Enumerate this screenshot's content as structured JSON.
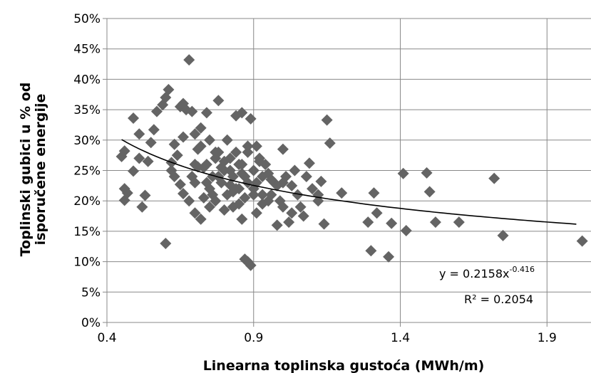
{
  "chart_data": {
    "type": "scatter",
    "xlabel": "Linearna toplinska gustoća (MWh/m)",
    "ylabel_lines": [
      "Toplinski gubici u % od",
      "isporučene energije"
    ],
    "xlim": [
      0.4,
      2.05
    ],
    "ylim": [
      0,
      0.5
    ],
    "x_ticks": [
      0.4,
      0.9,
      1.4,
      1.9
    ],
    "x_tick_labels": [
      "0.4",
      "0.9",
      "1.4",
      "1.9"
    ],
    "y_ticks": [
      0,
      0.05,
      0.1,
      0.15,
      0.2,
      0.25,
      0.3,
      0.35,
      0.4,
      0.45,
      0.5
    ],
    "y_tick_labels": [
      "0%",
      "5%",
      "10%",
      "15%",
      "20%",
      "25%",
      "30%",
      "35%",
      "40%",
      "45%",
      "50%"
    ],
    "grid": {
      "horizontal": true,
      "vertical": true
    },
    "marker_color": "#646464",
    "trendline": {
      "type": "power",
      "a": 0.2158,
      "b": -0.416,
      "x_range": [
        0.45,
        2.0
      ],
      "color": "#000000"
    },
    "equation": {
      "base": "y = 0.2158x",
      "exponent": "-0.416",
      "r2": "R² = 0.2054"
    },
    "points": [
      [
        0.45,
        0.273
      ],
      [
        0.46,
        0.282
      ],
      [
        0.46,
        0.22
      ],
      [
        0.47,
        0.213
      ],
      [
        0.46,
        0.201
      ],
      [
        0.49,
        0.336
      ],
      [
        0.49,
        0.249
      ],
      [
        0.51,
        0.27
      ],
      [
        0.51,
        0.31
      ],
      [
        0.52,
        0.19
      ],
      [
        0.53,
        0.209
      ],
      [
        0.54,
        0.265
      ],
      [
        0.55,
        0.296
      ],
      [
        0.56,
        0.317
      ],
      [
        0.57,
        0.347
      ],
      [
        0.59,
        0.358
      ],
      [
        0.6,
        0.37
      ],
      [
        0.61,
        0.383
      ],
      [
        0.62,
        0.263
      ],
      [
        0.63,
        0.293
      ],
      [
        0.64,
        0.275
      ],
      [
        0.65,
        0.355
      ],
      [
        0.65,
        0.227
      ],
      [
        0.66,
        0.212
      ],
      [
        0.67,
        0.35
      ],
      [
        0.68,
        0.432
      ],
      [
        0.6,
        0.13
      ],
      [
        0.62,
        0.25
      ],
      [
        0.63,
        0.24
      ],
      [
        0.69,
        0.347
      ],
      [
        0.7,
        0.31
      ],
      [
        0.7,
        0.23
      ],
      [
        0.71,
        0.256
      ],
      [
        0.72,
        0.32
      ],
      [
        0.72,
        0.29
      ],
      [
        0.72,
        0.17
      ],
      [
        0.73,
        0.205
      ],
      [
        0.74,
        0.345
      ],
      [
        0.74,
        0.26
      ],
      [
        0.75,
        0.3
      ],
      [
        0.75,
        0.22
      ],
      [
        0.75,
        0.19
      ],
      [
        0.76,
        0.24
      ],
      [
        0.77,
        0.27
      ],
      [
        0.77,
        0.2
      ],
      [
        0.78,
        0.365
      ],
      [
        0.78,
        0.28
      ],
      [
        0.79,
        0.23
      ],
      [
        0.8,
        0.25
      ],
      [
        0.8,
        0.185
      ],
      [
        0.81,
        0.3
      ],
      [
        0.81,
        0.21
      ],
      [
        0.82,
        0.27
      ],
      [
        0.82,
        0.226
      ],
      [
        0.83,
        0.24
      ],
      [
        0.83,
        0.19
      ],
      [
        0.84,
        0.34
      ],
      [
        0.84,
        0.28
      ],
      [
        0.85,
        0.26
      ],
      [
        0.85,
        0.22
      ],
      [
        0.86,
        0.345
      ],
      [
        0.86,
        0.26
      ],
      [
        0.86,
        0.17
      ],
      [
        0.87,
        0.24
      ],
      [
        0.87,
        0.205
      ],
      [
        0.87,
        0.104
      ],
      [
        0.88,
        0.1
      ],
      [
        0.88,
        0.28
      ],
      [
        0.89,
        0.335
      ],
      [
        0.89,
        0.094
      ],
      [
        0.9,
        0.25
      ],
      [
        0.9,
        0.22
      ],
      [
        0.91,
        0.29
      ],
      [
        0.91,
        0.18
      ],
      [
        0.92,
        0.27
      ],
      [
        0.93,
        0.24
      ],
      [
        0.93,
        0.21
      ],
      [
        0.94,
        0.26
      ],
      [
        0.96,
        0.21
      ],
      [
        0.97,
        0.23
      ],
      [
        0.98,
        0.16
      ],
      [
        0.99,
        0.2
      ],
      [
        1.0,
        0.285
      ],
      [
        1.01,
        0.24
      ],
      [
        1.02,
        0.165
      ],
      [
        1.03,
        0.225
      ],
      [
        1.04,
        0.25
      ],
      [
        1.05,
        0.21
      ],
      [
        1.06,
        0.19
      ],
      [
        1.07,
        0.175
      ],
      [
        1.08,
        0.24
      ],
      [
        1.09,
        0.262
      ],
      [
        1.1,
        0.22
      ],
      [
        1.12,
        0.2
      ],
      [
        1.13,
        0.232
      ],
      [
        1.14,
        0.162
      ],
      [
        1.15,
        0.333
      ],
      [
        1.16,
        0.295
      ],
      [
        1.2,
        0.213
      ],
      [
        1.29,
        0.165
      ],
      [
        1.3,
        0.118
      ],
      [
        1.31,
        0.213
      ],
      [
        1.32,
        0.18
      ],
      [
        1.36,
        0.108
      ],
      [
        1.37,
        0.163
      ],
      [
        1.41,
        0.245
      ],
      [
        1.42,
        0.151
      ],
      [
        1.49,
        0.246
      ],
      [
        1.5,
        0.215
      ],
      [
        1.52,
        0.165
      ],
      [
        1.6,
        0.165
      ],
      [
        1.72,
        0.237
      ],
      [
        1.75,
        0.143
      ],
      [
        2.02,
        0.134
      ],
      [
        0.68,
        0.2
      ],
      [
        0.7,
        0.26
      ],
      [
        0.76,
        0.21
      ],
      [
        0.79,
        0.255
      ],
      [
        0.83,
        0.215
      ],
      [
        0.88,
        0.23
      ],
      [
        0.92,
        0.265
      ],
      [
        0.95,
        0.245
      ],
      [
        1.0,
        0.19
      ],
      [
        0.74,
        0.23
      ],
      [
        0.85,
        0.195
      ],
      [
        0.9,
        0.21
      ],
      [
        0.69,
        0.24
      ],
      [
        0.66,
        0.305
      ],
      [
        0.77,
        0.28
      ],
      [
        0.82,
        0.25
      ],
      [
        0.84,
        0.22
      ],
      [
        0.95,
        0.2
      ],
      [
        1.03,
        0.18
      ],
      [
        1.0,
        0.23
      ],
      [
        0.73,
        0.255
      ],
      [
        0.88,
        0.29
      ],
      [
        0.91,
        0.23
      ],
      [
        0.96,
        0.235
      ],
      [
        0.66,
        0.36
      ],
      [
        0.71,
        0.285
      ],
      [
        0.8,
        0.265
      ],
      [
        0.86,
        0.245
      ],
      [
        0.98,
        0.225
      ],
      [
        1.12,
        0.21
      ],
      [
        0.7,
        0.18
      ],
      [
        0.78,
        0.24
      ],
      [
        0.93,
        0.195
      ]
    ]
  }
}
